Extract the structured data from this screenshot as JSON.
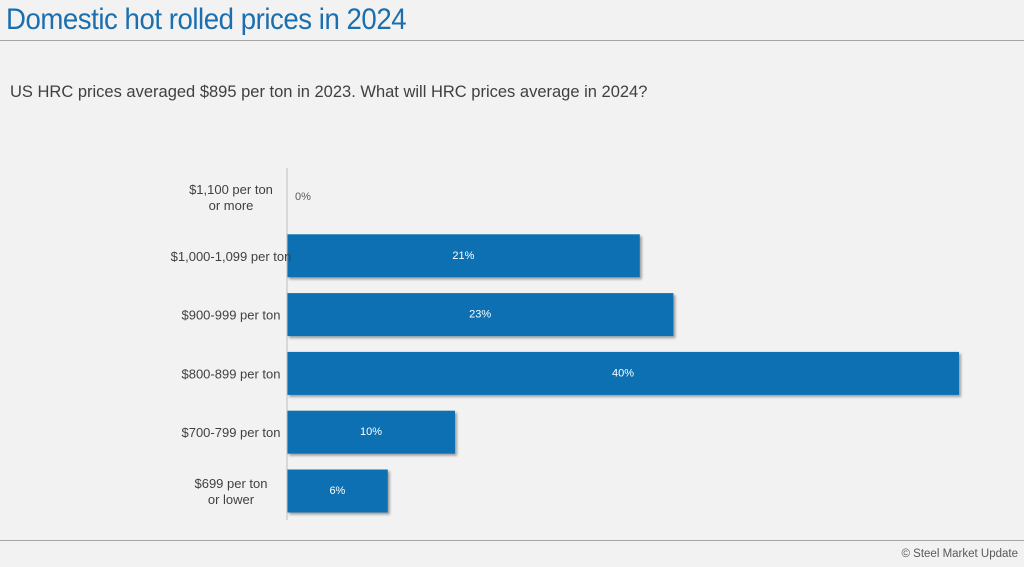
{
  "title": "Domestic hot rolled prices in 2024",
  "question": "US HRC prices averaged $895 per ton in 2023. What will HRC prices average in 2024?",
  "footer": "© Steel Market Update",
  "colors": {
    "bar": "#1170b2",
    "title": "#1b6fae",
    "zero_label": "#595959",
    "bar_label": "#ffffff"
  },
  "chart_data": {
    "type": "bar",
    "orientation": "horizontal",
    "title": "Domestic hot rolled prices in 2024",
    "categories": [
      [
        "$1,100 per ton",
        "or more"
      ],
      [
        "$1,000-1,099 per ton"
      ],
      [
        "$900-999 per ton"
      ],
      [
        "$800-899 per ton"
      ],
      [
        "$700-799 per ton"
      ],
      [
        "$699 per ton",
        "or lower"
      ]
    ],
    "values": [
      0,
      21,
      23,
      40,
      10,
      6
    ],
    "value_labels": [
      "0%",
      "21%",
      "23%",
      "40%",
      "10%",
      "6%"
    ],
    "unit": "%",
    "xlim": [
      0,
      40
    ],
    "xlabel": "",
    "ylabel": "",
    "grid": false,
    "legend": "none"
  }
}
